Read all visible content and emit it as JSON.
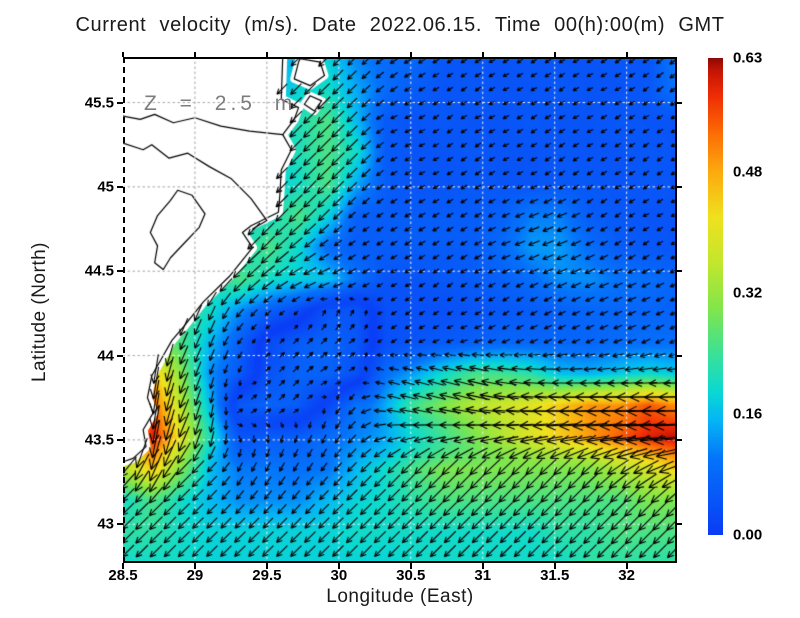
{
  "title": "Current velocity (m/s). Date 2022.06.15. Time 00(h):00(m) GMT",
  "annotation": "Z = 2.5 m",
  "axes": {
    "xlabel": "Longitude (East)",
    "ylabel": "Latitude (North)",
    "x_ticks": [
      {
        "value": 28.5,
        "label": "28.5"
      },
      {
        "value": 29,
        "label": "29"
      },
      {
        "value": 29.5,
        "label": "29.5"
      },
      {
        "value": 30,
        "label": "30"
      },
      {
        "value": 30.5,
        "label": "30.5"
      },
      {
        "value": 31,
        "label": "31"
      },
      {
        "value": 31.5,
        "label": "31.5"
      },
      {
        "value": 32,
        "label": "32"
      }
    ],
    "y_ticks": [
      {
        "value": 45.5,
        "label": "45.5"
      },
      {
        "value": 45,
        "label": "45"
      },
      {
        "value": 44.5,
        "label": "44.5"
      },
      {
        "value": 44,
        "label": "44"
      },
      {
        "value": 43.5,
        "label": "43.5"
      },
      {
        "value": 43,
        "label": "43"
      }
    ]
  },
  "colorbar": {
    "ticks": [
      {
        "value": 0.63,
        "label": "0.63"
      },
      {
        "value": 0.48,
        "label": "0.48"
      },
      {
        "value": 0.32,
        "label": "0.32"
      },
      {
        "value": 0.16,
        "label": "0.16"
      },
      {
        "value": 0.0,
        "label": "0.00"
      }
    ],
    "vmin": 0.0,
    "vmax": 0.63
  },
  "chart_data": {
    "type": "heatmap",
    "subtype": "vector-field-map",
    "title": "Current velocity (m/s). Date 2022.06.15. Time 00(h):00(m) GMT",
    "xlabel": "Longitude (East)",
    "ylabel": "Latitude (North)",
    "depth_annotation": "Z = 2.5 m",
    "xlim": [
      28.5,
      32.35
    ],
    "ylim": [
      42.77,
      45.77
    ],
    "grid": true,
    "grid_lons": [
      29,
      29.5,
      30,
      30.5,
      31,
      31.5,
      32
    ],
    "grid_lats": [
      43,
      43.5,
      44,
      44.5,
      45,
      45.5
    ],
    "speed_unit": "m/s",
    "speed_range": [
      0.0,
      0.63
    ],
    "colormap_stops": [
      [
        0.0,
        "#0a3cf5"
      ],
      [
        0.1,
        "#0573fa"
      ],
      [
        0.15,
        "#05b4f5"
      ],
      [
        0.19,
        "#0ad9d2"
      ],
      [
        0.24,
        "#3ce196"
      ],
      [
        0.3,
        "#82e64b"
      ],
      [
        0.36,
        "#c3e62d"
      ],
      [
        0.42,
        "#f0e11e"
      ],
      [
        0.48,
        "#fcaa0f"
      ],
      [
        0.53,
        "#fc6e05"
      ],
      [
        0.58,
        "#f02d05"
      ],
      [
        0.615,
        "#c31405"
      ],
      [
        0.63,
        "#8c0a05"
      ]
    ],
    "u": [
      [
        -0.11,
        -0.11,
        -0.11,
        -0.11,
        -0.11,
        -0.11,
        -0.11,
        -0.13,
        -0.08,
        -0.07,
        -0.07,
        -0.04,
        -0.04,
        -0.04,
        -0.04,
        -0.04,
        -0.04,
        -0.04,
        -0.04,
        -0.09
      ],
      [
        -0.11,
        -0.11,
        -0.11,
        -0.11,
        -0.11,
        -0.11,
        -0.13,
        -0.14,
        -0.1,
        -0.07,
        -0.05,
        -0.04,
        -0.04,
        -0.04,
        -0.04,
        -0.04,
        -0.04,
        -0.04,
        -0.04,
        -0.08
      ],
      [
        -0.11,
        -0.11,
        -0.11,
        -0.11,
        -0.11,
        -0.13,
        -0.15,
        -0.18,
        -0.11,
        -0.05,
        -0.04,
        -0.04,
        -0.04,
        -0.04,
        -0.04,
        -0.04,
        -0.04,
        -0.04,
        -0.04,
        -0.04
      ],
      [
        -0.11,
        -0.11,
        -0.11,
        -0.11,
        -0.11,
        -0.13,
        -0.15,
        -0.18,
        -0.14,
        -0.05,
        -0.04,
        -0.04,
        -0.04,
        -0.04,
        -0.04,
        -0.04,
        -0.04,
        -0.04,
        -0.04,
        -0.04
      ],
      [
        -0.11,
        -0.11,
        -0.11,
        -0.11,
        -0.12,
        -0.13,
        -0.14,
        -0.18,
        -0.1,
        -0.05,
        -0.04,
        -0.04,
        -0.04,
        -0.04,
        -0.04,
        -0.04,
        -0.04,
        -0.04,
        -0.04,
        -0.04
      ],
      [
        -0.14,
        -0.14,
        -0.14,
        -0.14,
        -0.14,
        -0.14,
        -0.18,
        -0.13,
        -0.05,
        -0.05,
        -0.05,
        -0.05,
        -0.05,
        -0.06,
        -0.1,
        -0.1,
        -0.05,
        -0.04,
        -0.04,
        -0.04
      ],
      [
        -0.14,
        -0.14,
        -0.14,
        -0.14,
        -0.14,
        -0.18,
        -0.15,
        -0.07,
        -0.05,
        -0.05,
        -0.05,
        -0.05,
        -0.05,
        -0.08,
        -0.12,
        -0.12,
        -0.08,
        -0.05,
        -0.04,
        -0.04
      ],
      [
        -0.16,
        -0.16,
        -0.16,
        -0.16,
        -0.18,
        -0.16,
        -0.16,
        -0.15,
        -0.08,
        -0.04,
        -0.04,
        -0.04,
        -0.05,
        -0.06,
        -0.08,
        -0.11,
        -0.11,
        -0.09,
        -0.08,
        -0.07
      ],
      [
        -0.1,
        -0.1,
        -0.1,
        -0.08,
        -0.08,
        -0.05,
        -0.02,
        0.02,
        0.02,
        -0.03,
        -0.03,
        -0.03,
        -0.04,
        -0.04,
        -0.05,
        -0.06,
        -0.07,
        -0.07,
        -0.07,
        -0.06
      ],
      [
        -0.05,
        -0.05,
        -0.1,
        -0.06,
        -0.04,
        0.02,
        0.04,
        0.05,
        0.04,
        -0.03,
        -0.04,
        -0.05,
        -0.06,
        -0.07,
        -0.07,
        -0.07,
        -0.07,
        -0.08,
        -0.08,
        -0.08
      ],
      [
        -0.06,
        -0.06,
        -0.11,
        -0.04,
        -0.02,
        0.03,
        0.05,
        0.06,
        0.03,
        -0.09,
        -0.13,
        -0.19,
        -0.24,
        -0.24,
        -0.22,
        -0.16,
        -0.15,
        -0.17,
        -0.19,
        -0.17
      ],
      [
        -0.08,
        -0.08,
        -0.13,
        -0.03,
        0.04,
        0.05,
        0.04,
        0.0,
        -0.07,
        -0.14,
        -0.24,
        -0.29,
        -0.34,
        -0.37,
        -0.4,
        -0.45,
        -0.5,
        -0.5,
        -0.55,
        -0.5
      ],
      [
        -0.11,
        -0.09,
        -0.15,
        -0.04,
        0.02,
        0.0,
        -0.02,
        -0.04,
        -0.08,
        -0.14,
        -0.19,
        -0.24,
        -0.29,
        -0.34,
        -0.39,
        -0.44,
        -0.49,
        -0.54,
        -0.59,
        -0.62
      ],
      [
        -0.25,
        -0.17,
        -0.21,
        -0.11,
        -0.05,
        -0.05,
        -0.05,
        -0.06,
        -0.11,
        -0.14,
        -0.18,
        -0.21,
        -0.21,
        -0.21,
        -0.21,
        -0.21,
        -0.22,
        -0.28,
        -0.34,
        -0.42
      ],
      [
        -0.14,
        -0.18,
        -0.14,
        -0.11,
        -0.08,
        -0.08,
        -0.08,
        -0.11,
        -0.13,
        -0.14,
        -0.16,
        -0.18,
        -0.18,
        -0.18,
        -0.18,
        -0.18,
        -0.18,
        -0.18,
        -0.21,
        -0.21
      ],
      [
        -0.16,
        -0.16,
        -0.14,
        -0.13,
        -0.13,
        -0.13,
        -0.13,
        -0.13,
        -0.14,
        -0.14,
        -0.14,
        -0.14,
        -0.14,
        -0.14,
        -0.14,
        -0.16,
        -0.16,
        -0.18,
        -0.18,
        -0.18
      ],
      [
        -0.14,
        -0.14,
        -0.14,
        -0.13,
        -0.13,
        -0.13,
        -0.13,
        -0.13,
        -0.13,
        -0.13,
        -0.14,
        -0.14,
        -0.14,
        -0.14,
        -0.14,
        -0.14,
        -0.16,
        -0.16,
        -0.16,
        -0.16
      ]
    ],
    "v": [
      [
        -0.11,
        -0.11,
        -0.11,
        -0.11,
        -0.11,
        -0.11,
        -0.11,
        -0.13,
        -0.08,
        -0.05,
        -0.04,
        -0.03,
        -0.02,
        -0.02,
        -0.03,
        -0.02,
        -0.02,
        -0.03,
        -0.02,
        -0.07
      ],
      [
        -0.11,
        -0.11,
        -0.11,
        -0.11,
        -0.11,
        -0.11,
        -0.13,
        -0.14,
        -0.1,
        -0.05,
        -0.03,
        -0.02,
        -0.03,
        -0.02,
        -0.02,
        -0.03,
        -0.02,
        -0.02,
        -0.03,
        -0.06
      ],
      [
        -0.11,
        -0.11,
        -0.11,
        -0.11,
        -0.11,
        -0.13,
        -0.15,
        -0.18,
        -0.11,
        -0.02,
        -0.02,
        -0.03,
        -0.02,
        -0.02,
        -0.03,
        -0.02,
        -0.02,
        -0.03,
        -0.02,
        -0.02
      ],
      [
        -0.11,
        -0.11,
        -0.11,
        -0.11,
        -0.11,
        -0.13,
        -0.15,
        -0.18,
        -0.14,
        -0.03,
        -0.02,
        -0.02,
        -0.03,
        -0.02,
        -0.02,
        -0.03,
        -0.02,
        -0.02,
        -0.03,
        -0.02
      ],
      [
        -0.11,
        -0.11,
        -0.11,
        -0.11,
        -0.12,
        -0.13,
        -0.14,
        -0.18,
        -0.1,
        -0.03,
        -0.02,
        -0.02,
        -0.03,
        -0.02,
        -0.02,
        -0.03,
        -0.03,
        -0.02,
        -0.03,
        -0.02
      ],
      [
        -0.14,
        -0.14,
        -0.14,
        -0.14,
        -0.14,
        -0.14,
        -0.18,
        -0.13,
        -0.04,
        -0.03,
        -0.03,
        -0.03,
        -0.03,
        -0.03,
        -0.04,
        -0.04,
        -0.03,
        -0.03,
        -0.02,
        -0.02
      ],
      [
        -0.14,
        -0.14,
        -0.14,
        -0.14,
        -0.14,
        -0.18,
        -0.12,
        -0.05,
        -0.03,
        -0.03,
        -0.03,
        -0.03,
        -0.03,
        -0.03,
        -0.05,
        -0.05,
        -0.04,
        -0.03,
        -0.03,
        -0.02
      ],
      [
        -0.16,
        -0.16,
        -0.16,
        -0.16,
        -0.18,
        -0.12,
        -0.08,
        -0.07,
        -0.05,
        -0.02,
        -0.02,
        -0.03,
        -0.03,
        -0.03,
        -0.04,
        -0.05,
        -0.05,
        -0.04,
        -0.04,
        -0.03
      ],
      [
        -0.23,
        -0.23,
        -0.23,
        -0.18,
        -0.09,
        -0.04,
        -0.02,
        0.04,
        0.04,
        -0.02,
        -0.02,
        -0.02,
        -0.02,
        -0.03,
        -0.03,
        -0.03,
        -0.03,
        -0.03,
        -0.03,
        -0.03
      ],
      [
        -0.3,
        -0.3,
        -0.23,
        -0.14,
        -0.05,
        0.02,
        0.04,
        0.05,
        0.03,
        -0.02,
        -0.02,
        -0.02,
        -0.02,
        -0.03,
        -0.03,
        -0.03,
        -0.03,
        -0.03,
        -0.04,
        -0.04
      ],
      [
        -0.45,
        -0.45,
        -0.28,
        -0.11,
        -0.05,
        0.03,
        0.05,
        0.04,
        0.02,
        0.02,
        0.04,
        0.05,
        0.06,
        0.04,
        0.02,
        0.0,
        -0.01,
        -0.02,
        -0.02,
        -0.02
      ],
      [
        -0.45,
        -0.54,
        -0.32,
        -0.15,
        0.04,
        0.05,
        0.04,
        -0.02,
        -0.07,
        0.04,
        0.06,
        0.07,
        0.08,
        0.05,
        0.03,
        0.02,
        0.0,
        0.0,
        0.0,
        0.0
      ],
      [
        -0.28,
        -0.59,
        -0.37,
        -0.2,
        -0.04,
        -0.06,
        -0.06,
        -0.08,
        -0.08,
        -0.03,
        -0.04,
        -0.04,
        -0.05,
        -0.05,
        -0.06,
        -0.06,
        -0.06,
        -0.05,
        -0.05,
        -0.04
      ],
      [
        -0.25,
        -0.42,
        -0.21,
        -0.11,
        -0.09,
        -0.09,
        -0.08,
        -0.08,
        -0.11,
        -0.14,
        -0.18,
        -0.21,
        -0.21,
        -0.21,
        -0.21,
        -0.21,
        -0.21,
        -0.2,
        -0.18,
        -0.15
      ],
      [
        -0.14,
        -0.18,
        -0.14,
        -0.11,
        -0.09,
        -0.09,
        -0.09,
        -0.11,
        -0.13,
        -0.14,
        -0.16,
        -0.18,
        -0.18,
        -0.18,
        -0.18,
        -0.18,
        -0.18,
        -0.18,
        -0.21,
        -0.21
      ],
      [
        -0.16,
        -0.16,
        -0.14,
        -0.13,
        -0.13,
        -0.13,
        -0.13,
        -0.13,
        -0.14,
        -0.14,
        -0.14,
        -0.14,
        -0.14,
        -0.14,
        -0.14,
        -0.16,
        -0.16,
        -0.18,
        -0.18,
        -0.18
      ],
      [
        -0.14,
        -0.14,
        -0.14,
        -0.13,
        -0.13,
        -0.13,
        -0.13,
        -0.13,
        -0.13,
        -0.13,
        -0.14,
        -0.14,
        -0.14,
        -0.14,
        -0.14,
        -0.14,
        -0.16,
        -0.16,
        -0.16,
        -0.16
      ]
    ],
    "coastline": [
      [
        29.61,
        45.77
      ],
      [
        29.6,
        45.52
      ],
      [
        29.72,
        45.47
      ],
      [
        29.69,
        45.4
      ],
      [
        29.61,
        45.31
      ],
      [
        29.67,
        45.22
      ],
      [
        29.6,
        45.1
      ],
      [
        29.59,
        44.95
      ],
      [
        29.58,
        44.85
      ],
      [
        29.39,
        44.77
      ],
      [
        29.33,
        44.73
      ],
      [
        29.4,
        44.64
      ],
      [
        29.24,
        44.47
      ],
      [
        29.06,
        44.32
      ],
      [
        28.92,
        44.17
      ],
      [
        28.84,
        44.09
      ],
      [
        28.78,
        44.0
      ],
      [
        28.7,
        43.88
      ],
      [
        28.67,
        43.75
      ],
      [
        28.71,
        43.66
      ],
      [
        28.64,
        43.56
      ],
      [
        28.66,
        43.46
      ],
      [
        28.57,
        43.39
      ],
      [
        28.5,
        43.37
      ]
    ],
    "lake": [
      [
        28.88,
        44.98
      ],
      [
        28.98,
        44.95
      ],
      [
        29.07,
        44.84
      ],
      [
        29.03,
        44.76
      ],
      [
        28.93,
        44.67
      ],
      [
        28.83,
        44.58
      ],
      [
        28.78,
        44.51
      ],
      [
        28.72,
        44.55
      ],
      [
        28.74,
        44.65
      ],
      [
        28.69,
        44.73
      ],
      [
        28.74,
        44.83
      ],
      [
        28.83,
        44.92
      ]
    ],
    "rivers": [
      [
        [
          28.5,
          45.42
        ],
        [
          28.62,
          45.4
        ],
        [
          28.72,
          45.43
        ],
        [
          28.85,
          45.38
        ],
        [
          29.0,
          45.41
        ],
        [
          29.18,
          45.36
        ],
        [
          29.38,
          45.33
        ],
        [
          29.61,
          45.31
        ]
      ],
      [
        [
          28.5,
          45.26
        ],
        [
          28.64,
          45.22
        ],
        [
          28.7,
          45.25
        ],
        [
          28.82,
          45.17
        ],
        [
          28.95,
          45.2
        ],
        [
          29.1,
          45.12
        ],
        [
          29.25,
          45.05
        ],
        [
          29.39,
          44.93
        ],
        [
          29.5,
          44.8
        ],
        [
          29.4,
          44.75
        ]
      ]
    ],
    "islets": [
      [
        [
          29.73,
          45.76
        ],
        [
          29.87,
          45.74
        ],
        [
          29.9,
          45.66
        ],
        [
          29.8,
          45.6
        ],
        [
          29.69,
          45.64
        ],
        [
          29.72,
          45.74
        ]
      ],
      [
        [
          29.8,
          45.54
        ],
        [
          29.88,
          45.51
        ],
        [
          29.83,
          45.45
        ],
        [
          29.76,
          45.49
        ]
      ]
    ]
  }
}
